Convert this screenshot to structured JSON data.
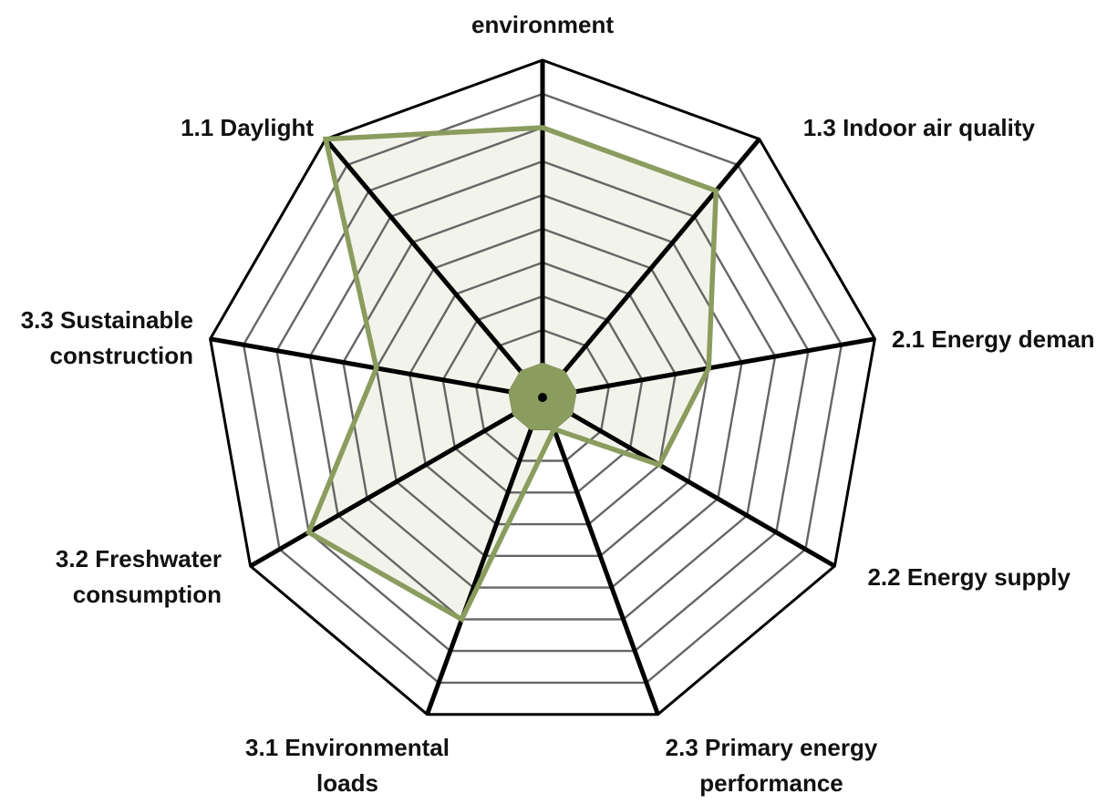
{
  "chart_data": {
    "type": "radar",
    "title": "",
    "scale": {
      "min": 0,
      "max": 10,
      "rings": 10,
      "grid": true
    },
    "axes": [
      {
        "id": "1.2",
        "label_lines": [
          "environment"
        ]
      },
      {
        "id": "1.3",
        "label_lines": [
          "1.3 Indoor air quality"
        ]
      },
      {
        "id": "2.1",
        "label_lines": [
          "2.1 Energy deman"
        ]
      },
      {
        "id": "2.2",
        "label_lines": [
          "2.2 Energy supply"
        ]
      },
      {
        "id": "2.3",
        "label_lines": [
          "2.3 Primary energy",
          "performance"
        ]
      },
      {
        "id": "3.1",
        "label_lines": [
          "3.1 Environmental",
          "loads"
        ]
      },
      {
        "id": "3.2",
        "label_lines": [
          "3.2 Freshwater",
          "consumption"
        ]
      },
      {
        "id": "3.3",
        "label_lines": [
          "3.3 Sustainable",
          "construction"
        ]
      },
      {
        "id": "1.1",
        "label_lines": [
          "1.1 Daylight"
        ]
      }
    ],
    "series": [
      {
        "values": [
          8,
          8,
          5,
          4,
          1,
          7,
          8,
          5,
          10
        ],
        "line_color": "#8a9c5e",
        "fill_color": "#f2f3ea"
      }
    ],
    "center_disc": {
      "radius_value": 1,
      "color": "#8a9c5e"
    },
    "colors": {
      "outer_grid": "#000000",
      "inner_grid": "#666666",
      "spokes": "#000000"
    }
  }
}
